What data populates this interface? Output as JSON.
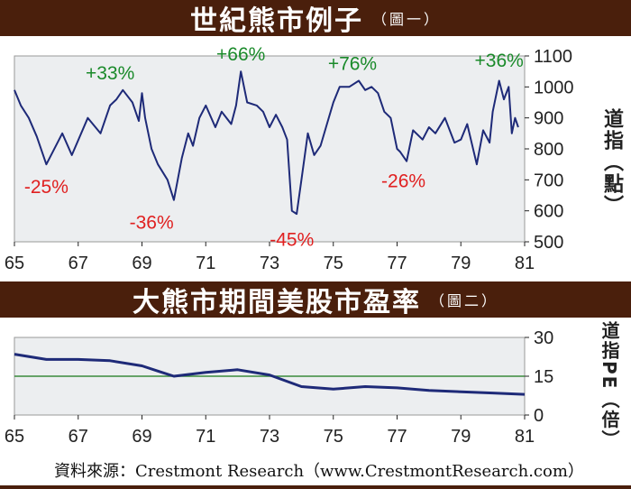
{
  "chart_data": [
    {
      "type": "line",
      "title": "世紀熊市例子",
      "subtitle": "（圖一）",
      "xlabel": "",
      "ylabel": "道指（點）",
      "x_ticks": [
        "65",
        "67",
        "69",
        "71",
        "73",
        "75",
        "77",
        "79",
        "81"
      ],
      "xlim": [
        1965,
        1981
      ],
      "ylim": [
        500,
        1100
      ],
      "y_ticks": [
        500,
        600,
        700,
        800,
        900,
        1000,
        1100
      ],
      "grid": false,
      "series": [
        {
          "color": "#1e2a78",
          "x": [
            1965.0,
            1965.2,
            1965.45,
            1965.7,
            1966.0,
            1966.5,
            1966.8,
            1967.3,
            1967.7,
            1968.0,
            1968.2,
            1968.4,
            1968.7,
            1968.9,
            1969.0,
            1969.1,
            1969.3,
            1969.5,
            1969.8,
            1970.0,
            1970.25,
            1970.45,
            1970.6,
            1970.8,
            1971.0,
            1971.3,
            1971.5,
            1971.8,
            1971.95,
            1972.1,
            1972.3,
            1972.6,
            1972.8,
            1973.0,
            1973.2,
            1973.4,
            1973.55,
            1973.7,
            1973.85,
            1974.0,
            1974.2,
            1974.4,
            1974.6,
            1974.8,
            1975.0,
            1975.2,
            1975.5,
            1975.8,
            1976.0,
            1976.2,
            1976.4,
            1976.6,
            1976.8,
            1977.0,
            1977.1,
            1977.3,
            1977.5,
            1977.8,
            1978.0,
            1978.2,
            1978.5,
            1978.8,
            1979.0,
            1979.2,
            1979.5,
            1979.7,
            1979.9,
            1980.0,
            1980.2,
            1980.35,
            1980.5,
            1980.6,
            1980.7,
            1980.8
          ],
          "y": [
            990,
            940,
            900,
            840,
            750,
            850,
            780,
            900,
            850,
            940,
            960,
            990,
            950,
            890,
            980,
            900,
            800,
            750,
            700,
            635,
            770,
            850,
            810,
            900,
            940,
            870,
            920,
            880,
            940,
            1050,
            950,
            940,
            920,
            870,
            910,
            870,
            830,
            600,
            590,
            700,
            850,
            780,
            810,
            880,
            950,
            1000,
            1000,
            1020,
            990,
            1000,
            980,
            920,
            900,
            800,
            790,
            760,
            860,
            830,
            870,
            850,
            900,
            820,
            830,
            880,
            750,
            860,
            820,
            920,
            1020,
            960,
            1000,
            850,
            900,
            870
          ]
        }
      ],
      "annotations": [
        {
          "text": "-25%",
          "x": 1966.0,
          "y": 750,
          "color": "#e02020"
        },
        {
          "text": "+33%",
          "x": 1968.0,
          "y": 990,
          "color": "#1a8a2a"
        },
        {
          "text": "-36%",
          "x": 1969.3,
          "y": 635,
          "color": "#e02020"
        },
        {
          "text": "+66%",
          "x": 1972.1,
          "y": 1050,
          "color": "#1a8a2a"
        },
        {
          "text": "-45%",
          "x": 1973.7,
          "y": 580,
          "color": "#e02020"
        },
        {
          "text": "+76%",
          "x": 1975.6,
          "y": 1020,
          "color": "#1a8a2a"
        },
        {
          "text": "-26%",
          "x": 1977.2,
          "y": 770,
          "color": "#e02020"
        },
        {
          "text": "+36%",
          "x": 1980.2,
          "y": 1030,
          "color": "#1a8a2a"
        }
      ]
    },
    {
      "type": "line",
      "title": "大熊市期間美股市盈率",
      "subtitle": "（圖二）",
      "xlabel": "",
      "ylabel": "道指PE（倍）",
      "x_ticks": [
        "65",
        "67",
        "69",
        "71",
        "73",
        "75",
        "77",
        "79",
        "81"
      ],
      "xlim": [
        1965,
        1981
      ],
      "ylim": [
        0,
        30
      ],
      "y_ticks": [
        0,
        15,
        30
      ],
      "grid": false,
      "reference_line": {
        "y": 15,
        "color": "#3a8a3a"
      },
      "series": [
        {
          "color": "#1e2a78",
          "x": [
            1965.0,
            1966.0,
            1967.0,
            1968.0,
            1969.0,
            1969.5,
            1970.0,
            1971.0,
            1972.0,
            1973.0,
            1974.0,
            1975.0,
            1976.0,
            1977.0,
            1978.0,
            1979.0,
            1980.0,
            1981.0
          ],
          "y": [
            23.5,
            21.5,
            21.5,
            21.0,
            19.0,
            17.0,
            15.0,
            16.5,
            17.5,
            15.5,
            11.0,
            10.0,
            11.0,
            10.5,
            9.5,
            9.0,
            8.5,
            8.0
          ]
        }
      ]
    }
  ],
  "source": "資料來源：Crestmont Research（www.CrestmontResearch.com）"
}
